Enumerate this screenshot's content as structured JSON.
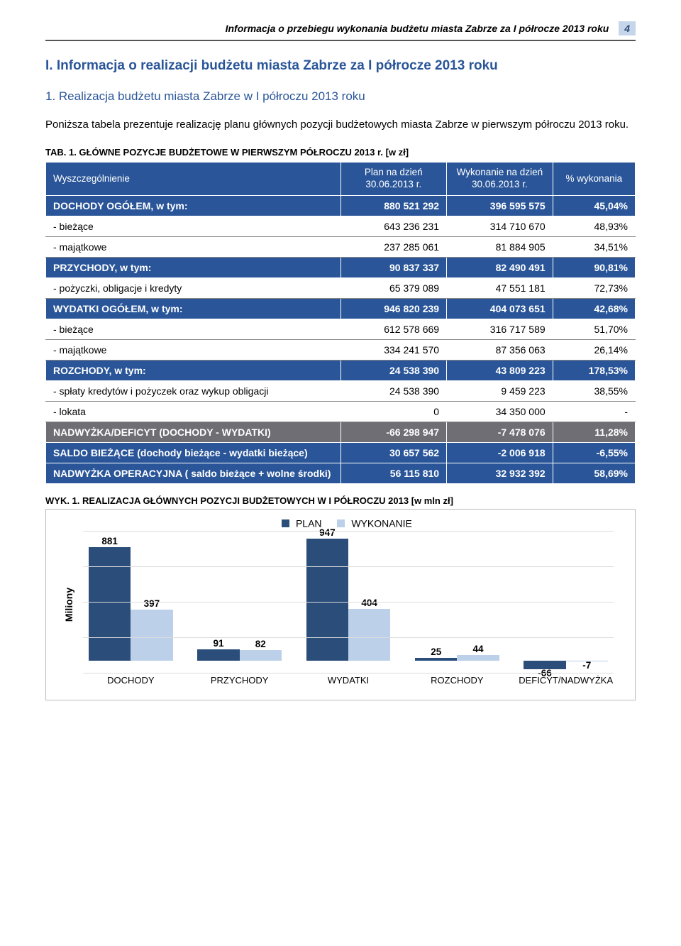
{
  "header": {
    "title": "Informacja o przebiegu wykonania budżetu miasta Zabrze za I półrocze 2013 roku",
    "page_number": "4"
  },
  "section": {
    "title": "I. Informacja o realizacji budżetu miasta Zabrze za I półrocze 2013 roku",
    "sub_title": "1. Realizacja budżetu miasta Zabrze w I półroczu 2013 roku",
    "body": "Poniższa tabela prezentuje realizację planu głównych pozycji budżetowych miasta Zabrze w pierwszym półroczu 2013 roku."
  },
  "table": {
    "caption": "TAB. 1. GŁÓWNE POZYCJE BUDŻETOWE W PIERWSZYM PÓŁROCZU 2013 r. [w zł]",
    "headers": {
      "name": "Wyszczególnienie",
      "plan": "Plan na dzień 30.06.2013 r.",
      "wyk": "Wykonanie na dzień 30.06.2013 r.",
      "pct": "% wykonania"
    },
    "rows": [
      {
        "style": "blue",
        "name": "DOCHODY OGÓŁEM, w tym:",
        "plan": "880 521 292",
        "wyk": "396 595 575",
        "pct": "45,04%"
      },
      {
        "style": "white",
        "name": "- bieżące",
        "plan": "643 236 231",
        "wyk": "314 710 670",
        "pct": "48,93%"
      },
      {
        "style": "white",
        "name": "- majątkowe",
        "plan": "237 285 061",
        "wyk": "81 884 905",
        "pct": "34,51%"
      },
      {
        "style": "blue",
        "name": "PRZYCHODY, w tym:",
        "plan": "90 837 337",
        "wyk": "82 490 491",
        "pct": "90,81%"
      },
      {
        "style": "white",
        "name": "- pożyczki, obligacje i kredyty",
        "plan": "65 379 089",
        "wyk": "47 551 181",
        "pct": "72,73%"
      },
      {
        "style": "blue",
        "name": "WYDATKI OGÓŁEM, w tym:",
        "plan": "946 820 239",
        "wyk": "404 073 651",
        "pct": "42,68%"
      },
      {
        "style": "white",
        "name": "- bieżące",
        "plan": "612 578 669",
        "wyk": "316 717 589",
        "pct": "51,70%"
      },
      {
        "style": "white",
        "name": "- majątkowe",
        "plan": "334 241 570",
        "wyk": "87 356 063",
        "pct": "26,14%"
      },
      {
        "style": "blue",
        "name": "ROZCHODY, w tym:",
        "plan": "24 538 390",
        "wyk": "43 809 223",
        "pct": "178,53%"
      },
      {
        "style": "white",
        "name": "- spłaty kredytów i pożyczek oraz wykup obligacji",
        "plan": "24 538 390",
        "wyk": "9 459 223",
        "pct": "38,55%"
      },
      {
        "style": "white",
        "name": "- lokata",
        "plan": "0",
        "wyk": "34 350 000",
        "pct": "-"
      },
      {
        "style": "grey",
        "name": "NADWYŻKA/DEFICYT (DOCHODY - WYDATKI)",
        "plan": "-66 298 947",
        "wyk": "-7 478 076",
        "pct": "11,28%"
      },
      {
        "style": "blue",
        "name": "SALDO BIEŻĄCE (dochody bieżące - wydatki bieżące)",
        "plan": "30 657 562",
        "wyk": "-2 006 918",
        "pct": "-6,55%"
      },
      {
        "style": "blue",
        "name": "NADWYŻKA OPERACYJNA ( saldo bieżące + wolne środki)",
        "plan": "56 115 810",
        "wyk": "32 932 392",
        "pct": "58,69%"
      }
    ]
  },
  "chart": {
    "caption": "WYK. 1. REALIZACJA GŁÓWNYCH POZYCJI BUDŻETOWYCH W I PÓŁROCZU 2013 [w mln zł]",
    "ylabel": "Miliony",
    "legend": {
      "plan_label": "PLAN",
      "wyk_label": "WYKONANIE"
    },
    "colors": {
      "plan": "#2a4d7a",
      "wyk": "#bcd0ea",
      "grid": "#dcdcdc",
      "bg": "#ffffff"
    },
    "type": "bar",
    "yrange": {
      "min": -100,
      "max": 1000,
      "grid_count": 4
    },
    "categories": [
      "DOCHODY",
      "PRZYCHODY",
      "WYDATKI",
      "ROZCHODY",
      "DEFICYT/NADWYŻKA"
    ],
    "series": {
      "plan": [
        881,
        91,
        947,
        25,
        -66
      ],
      "wyk": [
        397,
        82,
        404,
        44,
        -7
      ]
    }
  }
}
